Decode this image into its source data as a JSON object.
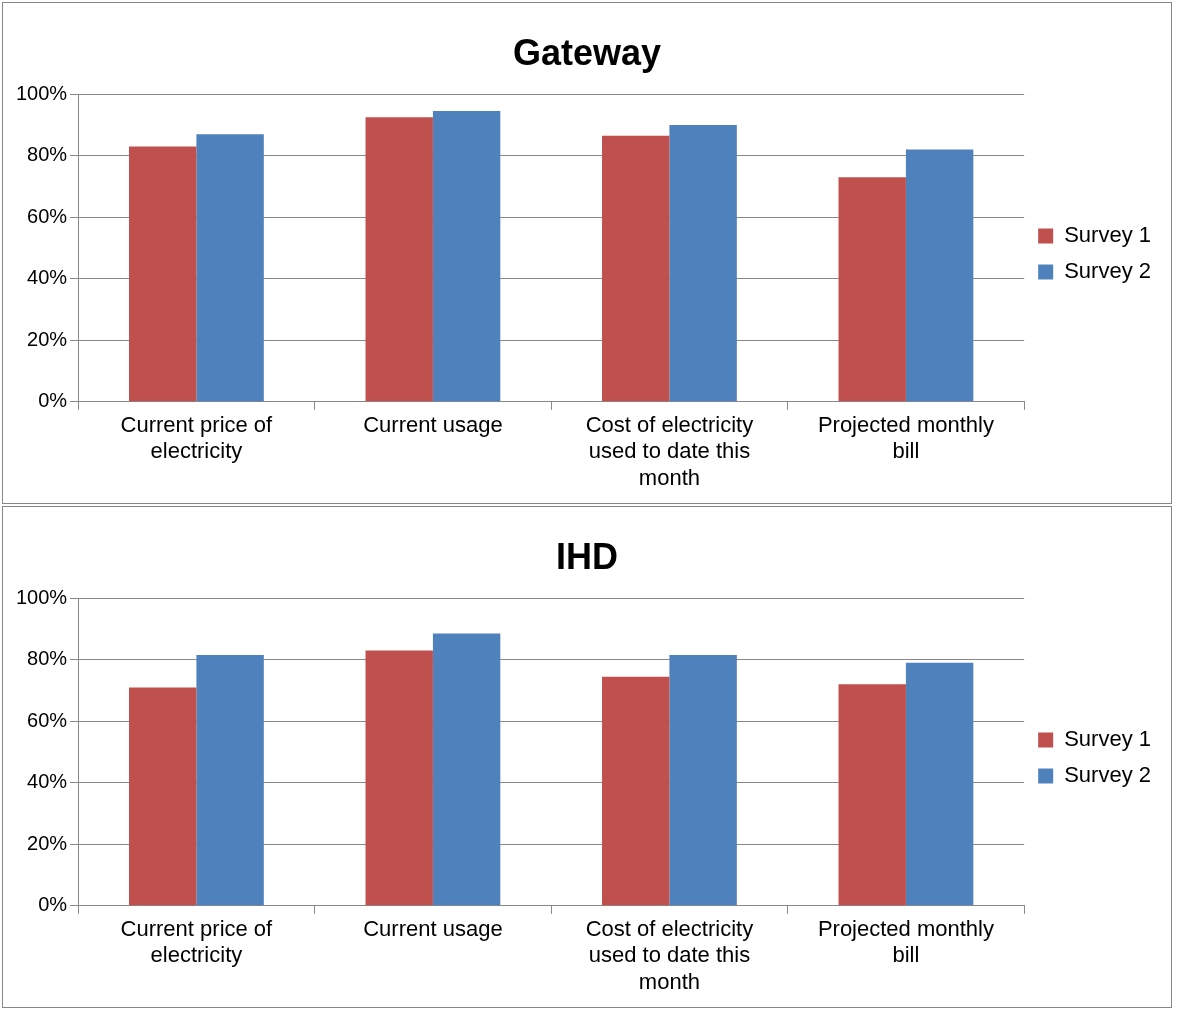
{
  "chart_data": [
    {
      "type": "bar",
      "title": "Gateway",
      "categories": [
        "Current price of electricity",
        "Current usage",
        "Cost of electricity used to date this month",
        "Projected monthly bill"
      ],
      "series": [
        {
          "name": "Survey 1",
          "color": "#c0504d",
          "values": [
            83,
            92.5,
            86.5,
            73
          ]
        },
        {
          "name": "Survey 2",
          "color": "#4f81bd",
          "values": [
            87,
            94.5,
            90,
            82
          ]
        }
      ],
      "ylim": [
        0,
        100
      ],
      "yticks": [
        {
          "value": 0,
          "label": "0%"
        },
        {
          "value": 20,
          "label": "20%"
        },
        {
          "value": 40,
          "label": "40%"
        },
        {
          "value": 60,
          "label": "60%"
        },
        {
          "value": 80,
          "label": "80%"
        },
        {
          "value": 100,
          "label": "100%"
        }
      ],
      "grid": "y",
      "legend": "right"
    },
    {
      "type": "bar",
      "title": "IHD",
      "categories": [
        "Current price of electricity",
        "Current usage",
        "Cost of electricity used to date this month",
        "Projected monthly bill"
      ],
      "series": [
        {
          "name": "Survey 1",
          "color": "#c0504d",
          "values": [
            71,
            83,
            74.5,
            72
          ]
        },
        {
          "name": "Survey 2",
          "color": "#4f81bd",
          "values": [
            81.5,
            88.5,
            81.5,
            79
          ]
        }
      ],
      "ylim": [
        0,
        100
      ],
      "yticks": [
        {
          "value": 0,
          "label": "0%"
        },
        {
          "value": 20,
          "label": "20%"
        },
        {
          "value": 40,
          "label": "40%"
        },
        {
          "value": 60,
          "label": "60%"
        },
        {
          "value": 80,
          "label": "80%"
        },
        {
          "value": 100,
          "label": "100%"
        }
      ],
      "grid": "y",
      "legend": "right"
    }
  ]
}
